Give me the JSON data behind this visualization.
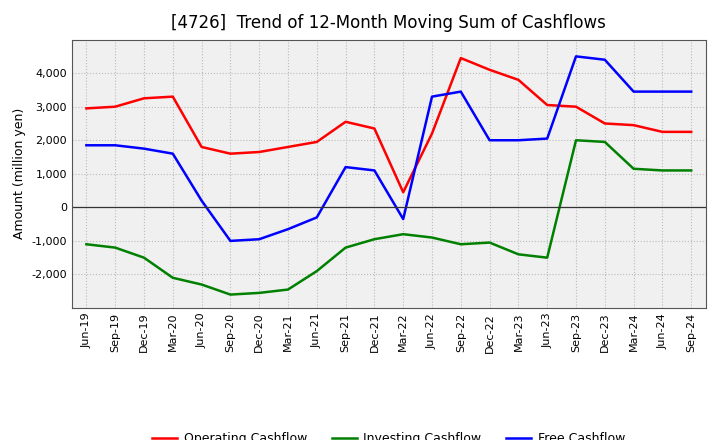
{
  "title": "[4726]  Trend of 12-Month Moving Sum of Cashflows",
  "ylabel": "Amount (million yen)",
  "x_labels": [
    "Jun-19",
    "Sep-19",
    "Dec-19",
    "Mar-20",
    "Jun-20",
    "Sep-20",
    "Dec-20",
    "Mar-21",
    "Jun-21",
    "Sep-21",
    "Dec-21",
    "Mar-22",
    "Jun-22",
    "Sep-22",
    "Dec-22",
    "Mar-23",
    "Jun-23",
    "Sep-23",
    "Dec-23",
    "Mar-24",
    "Jun-24",
    "Sep-24"
  ],
  "operating": [
    2950,
    3000,
    3250,
    3300,
    1800,
    1600,
    1650,
    1800,
    1950,
    2550,
    2350,
    450,
    2200,
    4450,
    4100,
    3800,
    3050,
    3000,
    2500,
    2450,
    2250,
    2250
  ],
  "investing": [
    -1100,
    -1200,
    -1500,
    -2100,
    -2300,
    -2600,
    -2550,
    -2450,
    -1900,
    -1200,
    -950,
    -800,
    -900,
    -1100,
    -1050,
    -1400,
    -1500,
    2000,
    1950,
    1150,
    1100,
    1100
  ],
  "free": [
    1850,
    1850,
    1750,
    1600,
    200,
    -1000,
    -950,
    -650,
    -300,
    1200,
    1100,
    -350,
    3300,
    3450,
    2000,
    2000,
    2050,
    4500,
    4400,
    3450,
    3450,
    3450
  ],
  "operating_color": "#ff0000",
  "investing_color": "#008000",
  "free_color": "#0000ff",
  "ylim": [
    -3000,
    5000
  ],
  "yticks": [
    -2000,
    -1000,
    0,
    1000,
    2000,
    3000,
    4000
  ],
  "plot_bg_color": "#f0f0f0",
  "background_color": "#ffffff",
  "grid_color": "#bbbbbb",
  "title_fontsize": 12,
  "axis_fontsize": 9,
  "tick_fontsize": 8,
  "legend_fontsize": 9,
  "line_width": 1.8
}
